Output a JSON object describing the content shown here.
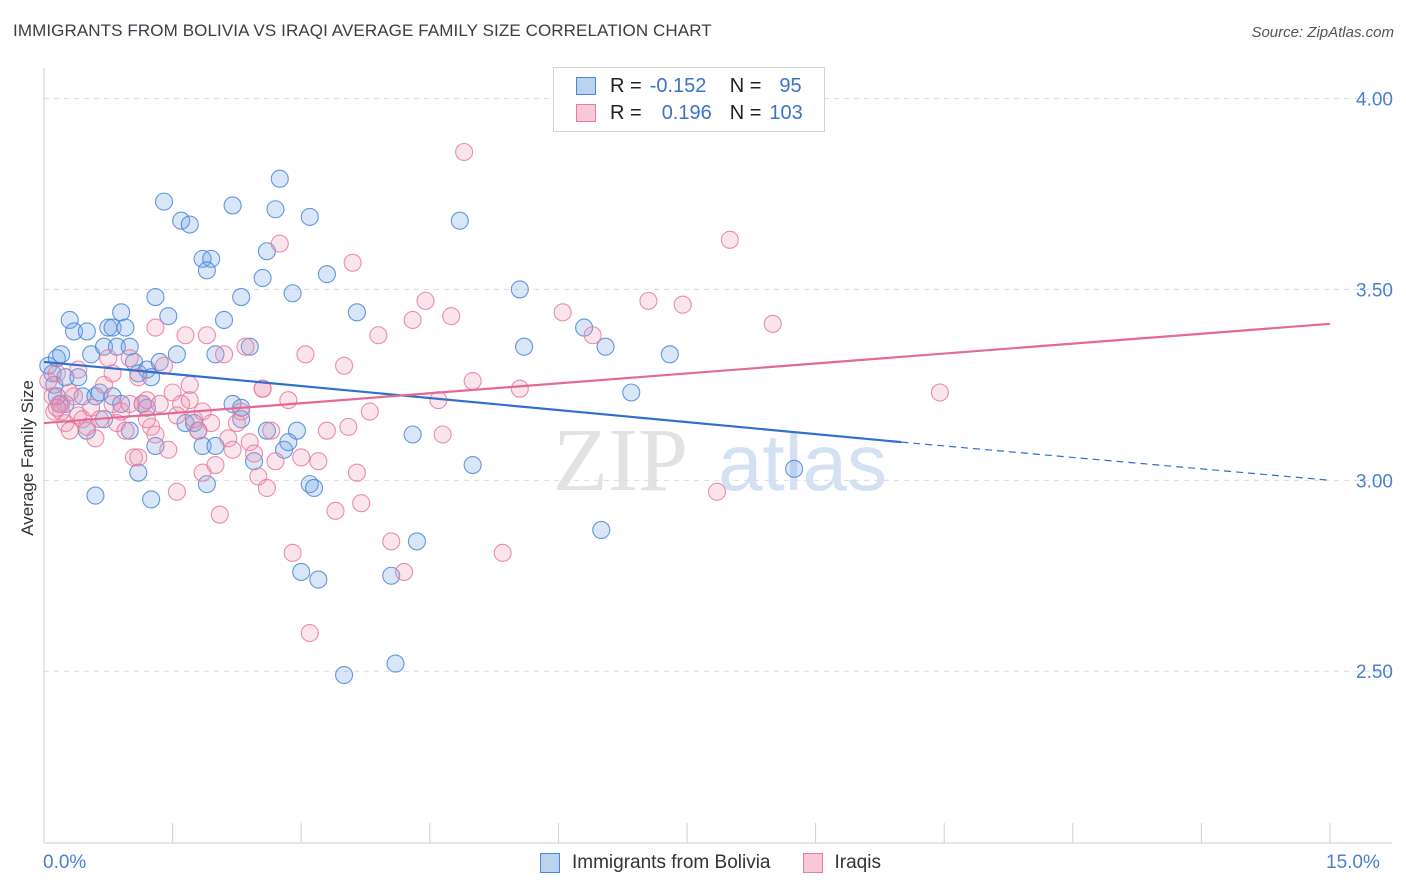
{
  "title": "IMMIGRANTS FROM BOLIVIA VS IRAQI AVERAGE FAMILY SIZE CORRELATION CHART",
  "source": "Source: ZipAtlas.com",
  "watermark": {
    "zip": "ZIP",
    "atlas": "atlas"
  },
  "legend_stats": {
    "row1": {
      "r_label": "R =",
      "r_value": "-0.152",
      "n_label": "N =",
      "n_value": "95"
    },
    "row2": {
      "r_label": "R =",
      "r_value": "0.196",
      "n_label": "N =",
      "n_value": "103"
    }
  },
  "bottom_legend": {
    "series1": "Immigrants from Bolivia",
    "series2": "Iraqis"
  },
  "x_axis": {
    "min_label": "0.0%",
    "max_label": "15.0%"
  },
  "chart_data": {
    "type": "scatter",
    "title": "IMMIGRANTS FROM BOLIVIA VS IRAQI AVERAGE FAMILY SIZE CORRELATION CHART",
    "xlabel": "",
    "ylabel": "Average Family Size",
    "xlim": [
      0,
      15
    ],
    "ylim": [
      2.05,
      4.08
    ],
    "y_ticks": [
      2.5,
      3.0,
      3.5,
      4.0
    ],
    "y_tick_labels": [
      "2.50",
      "3.00",
      "3.50",
      "4.00"
    ],
    "grid": true,
    "colors": {
      "bolivia": "#4a86d8",
      "iraqis": "#e87aa0",
      "bolivia_line": "#2f6fcf",
      "iraqis_line": "#e46a95"
    },
    "series": [
      {
        "name": "Immigrants from Bolivia",
        "color": "#4a86d8",
        "trend": {
          "x0": 0,
          "y0": 3.31,
          "x1": 10.0,
          "y1": 3.1,
          "dashed_to_x": 15.0,
          "dashed_to_y": 3.0
        },
        "points": [
          [
            0.05,
            3.3
          ],
          [
            0.1,
            3.28
          ],
          [
            0.12,
            3.25
          ],
          [
            0.15,
            3.32
          ],
          [
            0.18,
            3.2
          ],
          [
            0.2,
            3.33
          ],
          [
            0.25,
            3.27
          ],
          [
            0.3,
            3.42
          ],
          [
            0.35,
            3.39
          ],
          [
            0.4,
            3.27
          ],
          [
            0.45,
            3.22
          ],
          [
            0.5,
            3.39
          ],
          [
            0.55,
            3.33
          ],
          [
            0.6,
            3.22
          ],
          [
            0.65,
            3.23
          ],
          [
            0.7,
            3.35
          ],
          [
            0.75,
            3.4
          ],
          [
            0.8,
            3.4
          ],
          [
            0.85,
            3.35
          ],
          [
            0.9,
            3.44
          ],
          [
            0.95,
            3.4
          ],
          [
            1.0,
            3.35
          ],
          [
            1.05,
            3.31
          ],
          [
            1.1,
            3.28
          ],
          [
            1.15,
            3.2
          ],
          [
            1.2,
            3.29
          ],
          [
            1.25,
            3.27
          ],
          [
            1.3,
            3.48
          ],
          [
            1.35,
            3.31
          ],
          [
            1.45,
            3.43
          ],
          [
            1.55,
            3.33
          ],
          [
            1.6,
            3.68
          ],
          [
            1.7,
            3.67
          ],
          [
            1.4,
            3.73
          ],
          [
            1.85,
            3.58
          ],
          [
            1.95,
            3.58
          ],
          [
            1.9,
            3.55
          ],
          [
            2.0,
            3.33
          ],
          [
            2.1,
            3.42
          ],
          [
            2.2,
            3.72
          ],
          [
            2.3,
            3.48
          ],
          [
            2.4,
            3.35
          ],
          [
            2.55,
            3.53
          ],
          [
            2.6,
            3.6
          ],
          [
            2.7,
            3.71
          ],
          [
            2.75,
            3.79
          ],
          [
            2.9,
            3.49
          ],
          [
            3.1,
            3.69
          ],
          [
            3.3,
            3.54
          ],
          [
            3.65,
            3.44
          ],
          [
            4.85,
            3.68
          ],
          [
            5.55,
            3.5
          ],
          [
            5.6,
            3.35
          ],
          [
            6.3,
            3.4
          ],
          [
            6.55,
            3.35
          ],
          [
            6.85,
            3.23
          ],
          [
            7.3,
            3.33
          ],
          [
            8.75,
            3.03
          ],
          [
            5.0,
            3.04
          ],
          [
            4.3,
            3.12
          ],
          [
            0.5,
            3.13
          ],
          [
            0.6,
            2.96
          ],
          [
            0.7,
            3.16
          ],
          [
            0.8,
            3.22
          ],
          [
            0.9,
            3.2
          ],
          [
            1.0,
            3.13
          ],
          [
            1.1,
            3.02
          ],
          [
            1.2,
            3.19
          ],
          [
            1.3,
            3.09
          ],
          [
            1.25,
            2.95
          ],
          [
            1.65,
            3.15
          ],
          [
            1.75,
            3.15
          ],
          [
            1.8,
            3.13
          ],
          [
            1.85,
            3.09
          ],
          [
            1.9,
            2.99
          ],
          [
            2.0,
            3.09
          ],
          [
            2.2,
            3.2
          ],
          [
            2.3,
            3.16
          ],
          [
            2.45,
            3.05
          ],
          [
            2.6,
            3.13
          ],
          [
            2.8,
            3.08
          ],
          [
            2.95,
            3.13
          ],
          [
            3.1,
            2.99
          ],
          [
            3.15,
            2.98
          ],
          [
            2.85,
            3.1
          ],
          [
            3.0,
            2.76
          ],
          [
            3.2,
            2.74
          ],
          [
            3.5,
            2.49
          ],
          [
            4.05,
            2.75
          ],
          [
            4.35,
            2.84
          ],
          [
            4.1,
            2.52
          ],
          [
            6.5,
            2.87
          ],
          [
            2.3,
            3.19
          ],
          [
            0.25,
            3.2
          ],
          [
            0.15,
            3.22
          ]
        ]
      },
      {
        "name": "Iraqis",
        "color": "#e87aa0",
        "trend": {
          "x0": 0,
          "y0": 3.15,
          "x1": 15.0,
          "y1": 3.41
        },
        "points": [
          [
            0.05,
            3.26
          ],
          [
            0.1,
            3.22
          ],
          [
            0.12,
            3.18
          ],
          [
            0.15,
            3.28
          ],
          [
            0.2,
            3.2
          ],
          [
            0.25,
            3.15
          ],
          [
            0.3,
            3.13
          ],
          [
            0.35,
            3.22
          ],
          [
            0.4,
            3.17
          ],
          [
            0.45,
            3.16
          ],
          [
            0.5,
            3.14
          ],
          [
            0.55,
            3.19
          ],
          [
            0.6,
            3.11
          ],
          [
            0.65,
            3.16
          ],
          [
            0.7,
            3.25
          ],
          [
            0.75,
            3.32
          ],
          [
            0.8,
            3.2
          ],
          [
            0.85,
            3.15
          ],
          [
            0.9,
            3.18
          ],
          [
            0.95,
            3.13
          ],
          [
            1.0,
            3.2
          ],
          [
            1.05,
            3.06
          ],
          [
            1.1,
            3.27
          ],
          [
            1.15,
            3.2
          ],
          [
            1.2,
            3.21
          ],
          [
            1.25,
            3.14
          ],
          [
            1.3,
            3.12
          ],
          [
            1.35,
            3.2
          ],
          [
            1.4,
            3.3
          ],
          [
            1.45,
            3.08
          ],
          [
            1.5,
            3.23
          ],
          [
            1.55,
            3.17
          ],
          [
            1.6,
            3.2
          ],
          [
            1.65,
            3.38
          ],
          [
            1.7,
            3.21
          ],
          [
            1.75,
            3.16
          ],
          [
            1.8,
            3.13
          ],
          [
            1.85,
            3.18
          ],
          [
            1.9,
            3.38
          ],
          [
            1.95,
            3.15
          ],
          [
            2.0,
            3.04
          ],
          [
            2.1,
            3.33
          ],
          [
            2.15,
            3.11
          ],
          [
            2.2,
            3.08
          ],
          [
            2.3,
            3.18
          ],
          [
            2.35,
            3.35
          ],
          [
            2.4,
            3.1
          ],
          [
            2.45,
            3.07
          ],
          [
            2.5,
            3.01
          ],
          [
            2.55,
            3.24
          ],
          [
            2.6,
            2.98
          ],
          [
            2.65,
            3.13
          ],
          [
            2.7,
            3.05
          ],
          [
            2.75,
            3.62
          ],
          [
            2.85,
            3.21
          ],
          [
            2.9,
            2.81
          ],
          [
            3.0,
            3.06
          ],
          [
            3.05,
            3.33
          ],
          [
            3.1,
            2.6
          ],
          [
            3.2,
            3.05
          ],
          [
            3.3,
            3.13
          ],
          [
            3.4,
            2.92
          ],
          [
            3.5,
            3.3
          ],
          [
            3.55,
            3.14
          ],
          [
            3.6,
            3.57
          ],
          [
            3.65,
            3.02
          ],
          [
            3.7,
            2.94
          ],
          [
            3.8,
            3.18
          ],
          [
            3.9,
            3.38
          ],
          [
            4.05,
            2.84
          ],
          [
            4.2,
            2.76
          ],
          [
            4.3,
            3.42
          ],
          [
            4.45,
            3.47
          ],
          [
            4.6,
            3.21
          ],
          [
            4.65,
            3.12
          ],
          [
            4.75,
            3.43
          ],
          [
            4.9,
            3.86
          ],
          [
            5.0,
            3.26
          ],
          [
            5.35,
            2.81
          ],
          [
            5.55,
            3.24
          ],
          [
            6.05,
            3.44
          ],
          [
            6.4,
            3.38
          ],
          [
            7.05,
            3.47
          ],
          [
            7.45,
            3.46
          ],
          [
            7.85,
            2.97
          ],
          [
            8.0,
            3.63
          ],
          [
            8.5,
            3.41
          ],
          [
            10.45,
            3.23
          ],
          [
            0.8,
            3.28
          ],
          [
            1.0,
            3.32
          ],
          [
            1.1,
            3.06
          ],
          [
            1.2,
            3.16
          ],
          [
            1.3,
            3.4
          ],
          [
            1.55,
            2.97
          ],
          [
            1.7,
            3.25
          ],
          [
            1.85,
            3.02
          ],
          [
            2.05,
            2.91
          ],
          [
            2.25,
            3.15
          ],
          [
            2.55,
            3.24
          ],
          [
            0.4,
            3.29
          ],
          [
            0.3,
            3.23
          ],
          [
            0.2,
            3.18
          ],
          [
            0.15,
            3.19
          ]
        ]
      }
    ]
  }
}
